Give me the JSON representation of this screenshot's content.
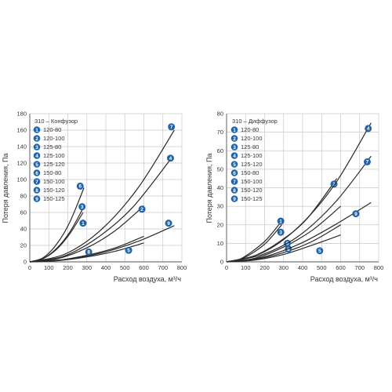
{
  "chart_data": [
    {
      "type": "line",
      "title": "310 – Конфузор",
      "xlabel": "Расход воздуха, м³/ч",
      "ylabel": "Потеря давления, Па",
      "xlim": [
        0,
        800
      ],
      "ylim": [
        0,
        180
      ],
      "xticks": [
        "0",
        "100",
        "200",
        "300",
        "400",
        "500",
        "600",
        "700",
        "800"
      ],
      "yticks": [
        "0",
        "20",
        "40",
        "60",
        "80",
        "100",
        "120",
        "140",
        "160",
        "180"
      ],
      "grid": true,
      "legend_placement": "top-left",
      "line_color": "#2a2a2a",
      "badge_color": "#1f63a8",
      "legend": [
        {
          "id": "1",
          "label": "120-80"
        },
        {
          "id": "2",
          "label": "120-100"
        },
        {
          "id": "3",
          "label": "125-80"
        },
        {
          "id": "4",
          "label": "125-100"
        },
        {
          "id": "5",
          "label": "125-120"
        },
        {
          "id": "6",
          "label": "150-80"
        },
        {
          "id": "7",
          "label": "150-100"
        },
        {
          "id": "8",
          "label": "150-120"
        },
        {
          "id": "9",
          "label": "150-125"
        }
      ],
      "series": [
        {
          "id": "1",
          "x": [
            0,
            70,
            140,
            210,
            280
          ],
          "y": [
            0,
            4,
            15,
            34,
            60
          ],
          "marker": [
            280,
            47
          ]
        },
        {
          "id": "2",
          "x": [
            0,
            150,
            300,
            450,
            600
          ],
          "y": [
            0,
            4,
            17,
            38,
            68
          ],
          "marker": [
            590,
            64
          ]
        },
        {
          "id": "3",
          "x": [
            0,
            70,
            140,
            210,
            280
          ],
          "y": [
            0,
            4,
            16,
            36,
            65
          ],
          "marker": [
            275,
            67
          ]
        },
        {
          "id": "4",
          "x": [
            0,
            180,
            360,
            540,
            745
          ],
          "y": [
            0,
            7,
            30,
            66,
            126
          ],
          "marker": [
            740,
            126
          ]
        },
        {
          "id": "5",
          "x": [
            0,
            150,
            300,
            450,
            600
          ],
          "y": [
            0,
            1.5,
            6,
            13,
            23
          ],
          "marker": [
            520,
            14
          ]
        },
        {
          "id": "6",
          "x": [
            0,
            70,
            140,
            210,
            285
          ],
          "y": [
            0,
            5,
            21,
            48,
            90
          ],
          "marker": [
            265,
            92
          ]
        },
        {
          "id": "7",
          "x": [
            0,
            190,
            380,
            570,
            760
          ],
          "y": [
            0,
            10,
            40,
            90,
            160
          ],
          "marker": [
            745,
            164
          ]
        },
        {
          "id": "8",
          "x": [
            0,
            150,
            300,
            450,
            600
          ],
          "y": [
            0,
            2,
            8,
            17,
            31
          ],
          "marker": [
            310,
            12
          ]
        },
        {
          "id": "9",
          "x": [
            0,
            190,
            380,
            570,
            760
          ],
          "y": [
            0,
            3,
            11,
            25,
            44
          ],
          "marker": [
            730,
            47
          ]
        }
      ]
    },
    {
      "type": "line",
      "title": "310 – Диффузор",
      "xlabel": "Расход воздуха, м³/ч",
      "ylabel": "Потеря давления, Па",
      "xlim": [
        0,
        800
      ],
      "ylim": [
        0,
        80
      ],
      "xticks": [
        "0",
        "100",
        "200",
        "300",
        "400",
        "500",
        "600",
        "700",
        "800"
      ],
      "yticks": [
        "0",
        "10",
        "20",
        "30",
        "40",
        "50",
        "60",
        "70",
        "80"
      ],
      "grid": true,
      "legend_placement": "top-left",
      "line_color": "#2a2a2a",
      "badge_color": "#1f63a8",
      "legend": [
        {
          "id": "1",
          "label": "120-80"
        },
        {
          "id": "2",
          "label": "120-100"
        },
        {
          "id": "3",
          "label": "125-80"
        },
        {
          "id": "4",
          "label": "125-100"
        },
        {
          "id": "5",
          "label": "125-120"
        },
        {
          "id": "6",
          "label": "150-80"
        },
        {
          "id": "7",
          "label": "150-100"
        },
        {
          "id": "8",
          "label": "150-120"
        },
        {
          "id": "9",
          "label": "150-125"
        }
      ],
      "series": [
        {
          "id": "1",
          "x": [
            0,
            70,
            140,
            210,
            290
          ],
          "y": [
            0,
            1.5,
            6,
            12,
            22
          ],
          "marker": [
            285,
            22
          ]
        },
        {
          "id": "2",
          "x": [
            0,
            140,
            280,
            420,
            580
          ],
          "y": [
            0,
            3,
            11,
            23,
            45
          ],
          "marker": [
            565,
            42
          ]
        },
        {
          "id": "3",
          "x": [
            0,
            70,
            140,
            210,
            290
          ],
          "y": [
            0,
            1.3,
            5,
            10.5,
            20
          ],
          "marker": [
            285,
            16
          ]
        },
        {
          "id": "4",
          "x": [
            0,
            190,
            380,
            570,
            760
          ],
          "y": [
            0,
            5,
            19,
            42,
            75
          ],
          "marker": [
            745,
            72
          ]
        },
        {
          "id": "5",
          "x": [
            0,
            150,
            300,
            450,
            600
          ],
          "y": [
            0,
            1,
            4,
            9,
            14.5
          ],
          "marker": [
            490,
            6
          ]
        },
        {
          "id": "6",
          "x": [
            0,
            150,
            300,
            450,
            600
          ],
          "y": [
            0,
            2,
            8,
            17,
            30
          ],
          "marker": [
            320,
            10
          ]
        },
        {
          "id": "7",
          "x": [
            0,
            190,
            380,
            570,
            760
          ],
          "y": [
            0,
            4,
            14,
            32,
            57
          ],
          "marker": [
            740,
            54
          ]
        },
        {
          "id": "8",
          "x": [
            0,
            150,
            300,
            450,
            600
          ],
          "y": [
            0,
            1.3,
            5,
            11,
            20
          ],
          "marker": [
            325,
            7
          ]
        },
        {
          "id": "9",
          "x": [
            0,
            190,
            380,
            570,
            760
          ],
          "y": [
            0,
            2.5,
            9.5,
            20,
            32
          ],
          "marker": [
            680,
            26
          ]
        }
      ]
    }
  ]
}
